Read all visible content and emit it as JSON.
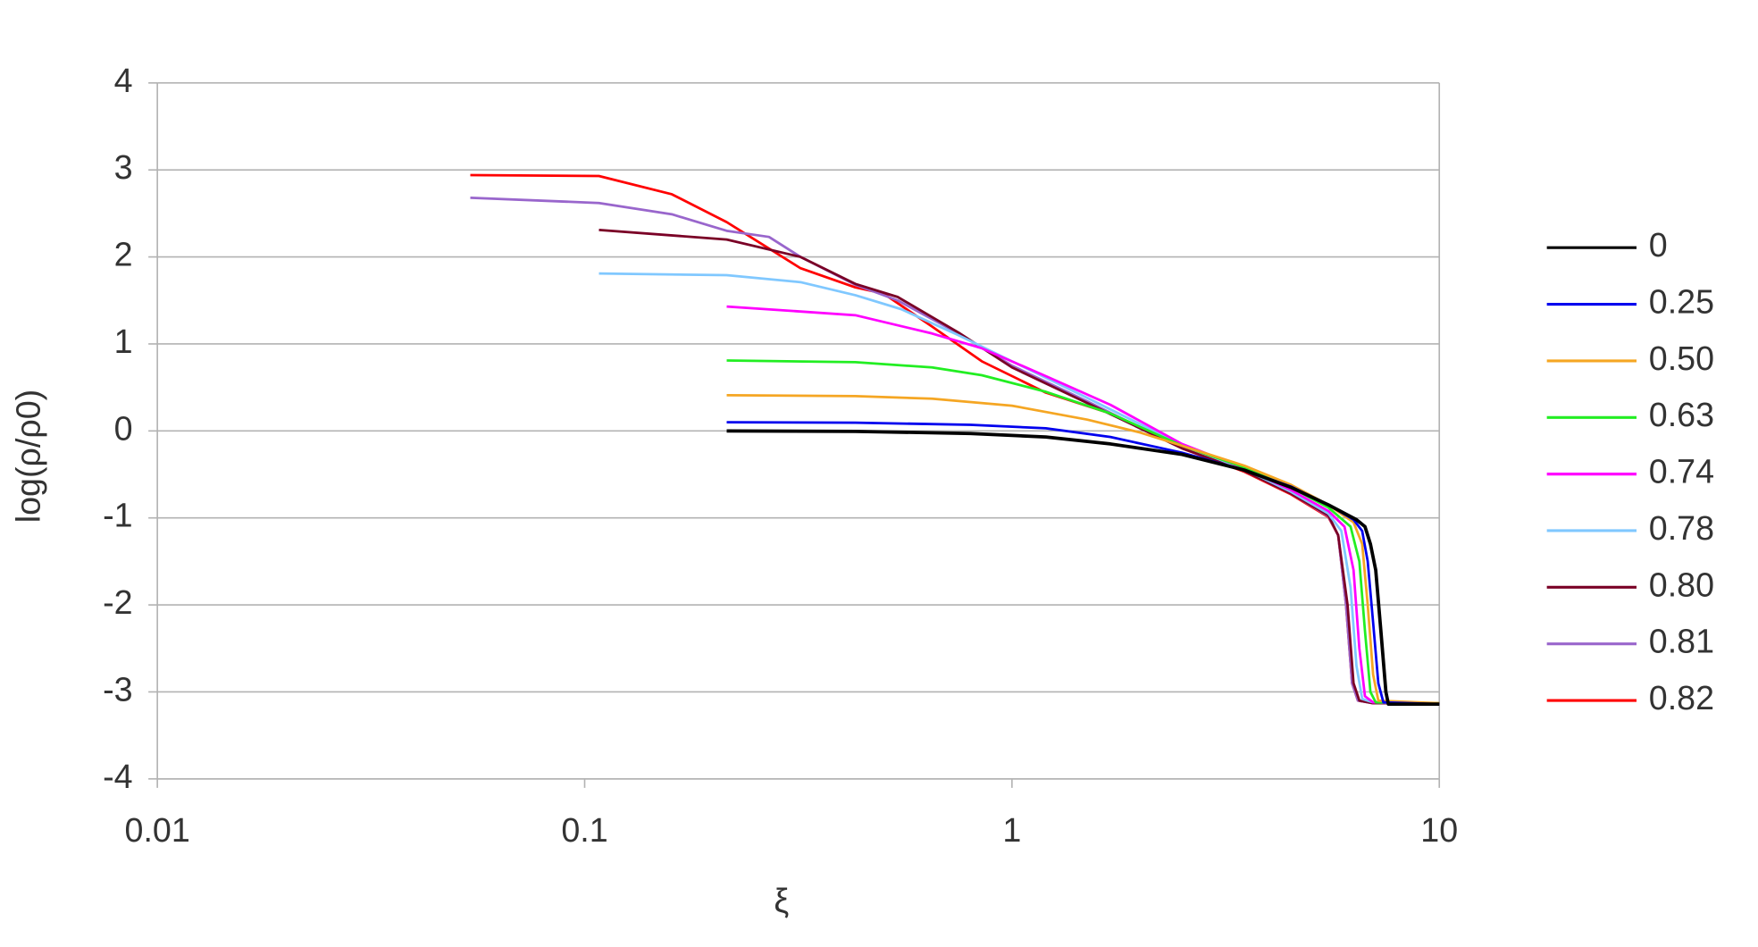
{
  "chart_data": {
    "type": "line",
    "x_label": "ξ",
    "y_label": "log(ρ/ρ0)",
    "log_x": true,
    "grid": true,
    "legend": "right",
    "xlim": [
      0.01,
      10
    ],
    "xticks": [
      0.01,
      0.1,
      1,
      10
    ],
    "ylim": [
      -4,
      4
    ],
    "yticks": [
      -4,
      -3,
      -2,
      -1,
      0,
      1,
      2,
      3,
      4
    ],
    "series": [
      {
        "name": "0",
        "color": "#000000",
        "x": [
          0.215,
          0.43,
          0.8,
          1.2,
          1.7,
          2.5,
          3.5,
          4.5,
          5.5,
          6.4,
          6.7,
          6.9,
          7.1,
          7.3,
          7.5,
          7.6,
          10
        ],
        "values": [
          0,
          -0.005,
          -0.03,
          -0.07,
          -0.15,
          -0.27,
          -0.45,
          -0.65,
          -0.85,
          -1.02,
          -1.1,
          -1.3,
          -1.6,
          -2.3,
          -3.0,
          -3.14,
          -3.14
        ]
      },
      {
        "name": "0.25",
        "color": "#0000ee",
        "x": [
          0.215,
          0.43,
          0.8,
          1.2,
          1.7,
          2.5,
          3.5,
          4.5,
          5.5,
          6.3,
          6.6,
          6.8,
          7.0,
          7.2,
          7.4,
          10
        ],
        "values": [
          0.1,
          0.095,
          0.07,
          0.03,
          -0.07,
          -0.25,
          -0.45,
          -0.64,
          -0.85,
          -1.02,
          -1.15,
          -1.5,
          -2.2,
          -2.9,
          -3.12,
          -3.14
        ]
      },
      {
        "name": "0.50",
        "color": "#f5a623",
        "x": [
          0.215,
          0.43,
          0.65,
          1.0,
          1.5,
          2.0,
          2.5,
          3.5,
          4.5,
          5.5,
          6.3,
          6.6,
          6.8,
          7.0,
          7.2,
          10
        ],
        "values": [
          0.41,
          0.4,
          0.37,
          0.29,
          0.13,
          -0.02,
          -0.17,
          -0.4,
          -0.62,
          -0.85,
          -1.05,
          -1.3,
          -2.0,
          -2.8,
          -3.1,
          -3.13
        ]
      },
      {
        "name": "0.63",
        "color": "#22ee22",
        "x": [
          0.215,
          0.43,
          0.65,
          0.85,
          1.2,
          1.7,
          2.5,
          3.5,
          4.5,
          5.5,
          6.2,
          6.5,
          6.7,
          6.9,
          7.1,
          10
        ],
        "values": [
          0.81,
          0.79,
          0.73,
          0.64,
          0.45,
          0.2,
          -0.17,
          -0.42,
          -0.65,
          -0.88,
          -1.1,
          -1.5,
          -2.3,
          -3.0,
          -3.12,
          -3.13
        ]
      },
      {
        "name": "0.74",
        "color": "#ff00ff",
        "x": [
          0.215,
          0.43,
          0.65,
          0.85,
          1.2,
          1.7,
          2.5,
          3.5,
          4.5,
          5.5,
          6.0,
          6.3,
          6.5,
          6.7,
          7.0,
          10
        ],
        "values": [
          1.43,
          1.33,
          1.12,
          0.95,
          0.63,
          0.3,
          -0.15,
          -0.43,
          -0.68,
          -0.92,
          -1.1,
          -1.6,
          -2.5,
          -3.05,
          -3.12,
          -3.13
        ]
      },
      {
        "name": "0.78",
        "color": "#80c8ff",
        "x": [
          0.108,
          0.215,
          0.32,
          0.43,
          0.55,
          0.75,
          1.0,
          1.5,
          2.5,
          3.5,
          4.5,
          5.5,
          5.9,
          6.2,
          6.4,
          6.6,
          7.0,
          10
        ],
        "values": [
          1.81,
          1.79,
          1.71,
          1.56,
          1.4,
          1.1,
          0.8,
          0.38,
          -0.16,
          -0.44,
          -0.7,
          -0.95,
          -1.15,
          -1.8,
          -2.7,
          -3.08,
          -3.12,
          -3.13
        ]
      },
      {
        "name": "0.80",
        "color": "#7a0026",
        "x": [
          0.108,
          0.215,
          0.32,
          0.43,
          0.54,
          0.75,
          1.0,
          1.5,
          2.5,
          3.5,
          4.5,
          5.5,
          5.8,
          6.1,
          6.3,
          6.5,
          7.0,
          10
        ],
        "values": [
          2.31,
          2.2,
          2.0,
          1.69,
          1.54,
          1.13,
          0.73,
          0.32,
          -0.2,
          -0.46,
          -0.72,
          -0.97,
          -1.2,
          -2.0,
          -2.9,
          -3.1,
          -3.13,
          -3.13
        ]
      },
      {
        "name": "0.81",
        "color": "#9966cc",
        "x": [
          0.054,
          0.108,
          0.16,
          0.215,
          0.27,
          0.32,
          0.43,
          0.54,
          0.75,
          1.0,
          1.5,
          2.5,
          3.5,
          4.5,
          5.5,
          5.8,
          6.05,
          6.25,
          6.45,
          7.0,
          10
        ],
        "values": [
          2.68,
          2.62,
          2.49,
          2.3,
          2.23,
          2.0,
          1.68,
          1.5,
          1.12,
          0.75,
          0.34,
          -0.2,
          -0.46,
          -0.72,
          -0.98,
          -1.2,
          -2.0,
          -2.9,
          -3.1,
          -3.13,
          -3.13
        ]
      },
      {
        "name": "0.82",
        "color": "#ff0000",
        "x": [
          0.054,
          0.108,
          0.16,
          0.215,
          0.32,
          0.43,
          0.5,
          0.65,
          0.85,
          1.2,
          1.7,
          2.5,
          3.5,
          4.5,
          5.5,
          5.8,
          6.05,
          6.25,
          6.45,
          7.0,
          10
        ],
        "values": [
          2.94,
          2.93,
          2.72,
          2.4,
          1.87,
          1.65,
          1.58,
          1.2,
          0.8,
          0.44,
          0.2,
          -0.2,
          -0.47,
          -0.73,
          -0.99,
          -1.2,
          -2.0,
          -2.9,
          -3.1,
          -3.13,
          -3.13
        ]
      }
    ]
  }
}
